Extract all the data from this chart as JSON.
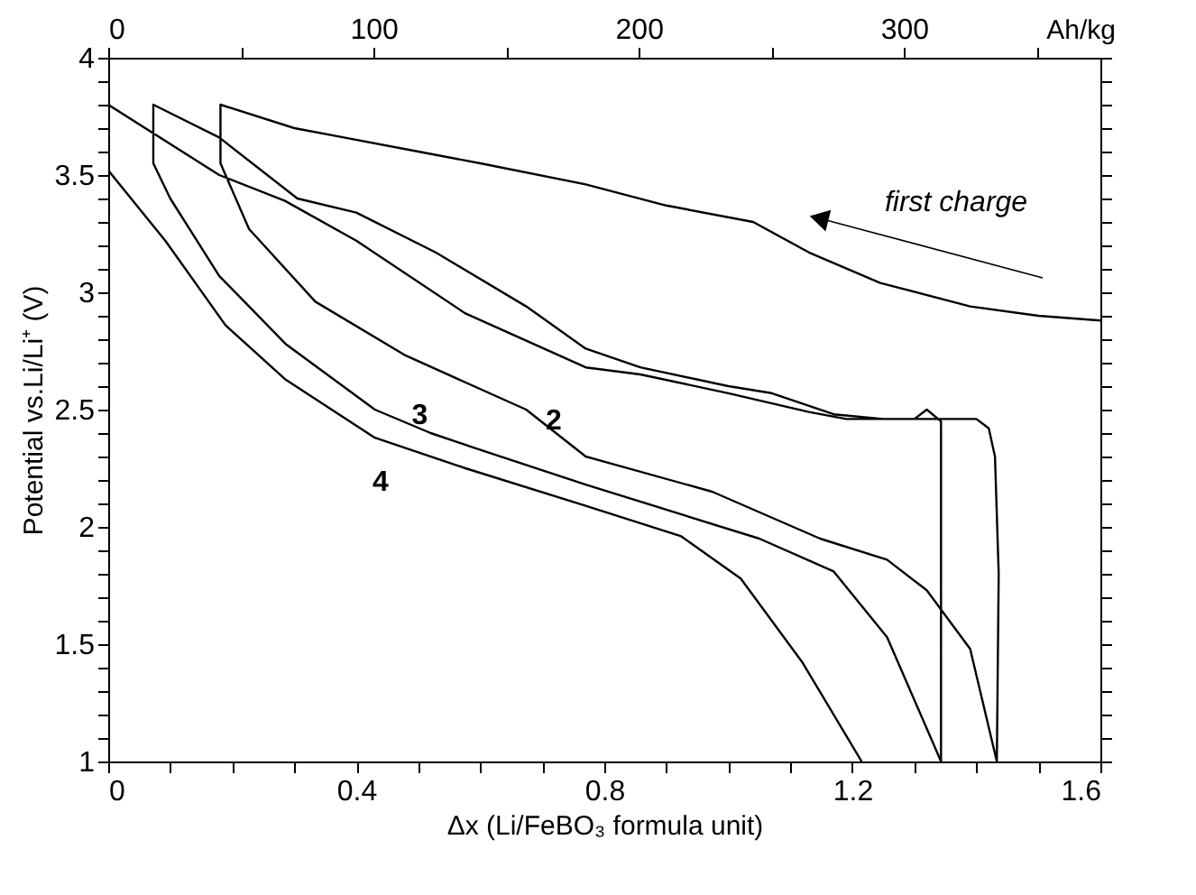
{
  "chart_data": {
    "type": "line",
    "xlabel": "Δx (Li/FeBO₃ formula unit)",
    "ylabel": "Potential vs.Li/Li⁺ (V)",
    "x2label": "Ah/kg",
    "xlim": [
      0,
      1.6
    ],
    "xticks": [
      0,
      {
        "value": 0.1,
        "label": null
      },
      {
        "value": 0.2,
        "label": null
      },
      {
        "value": 0.3,
        "label": null
      },
      0.4,
      {
        "value": 0.5,
        "label": null
      },
      {
        "value": 0.6,
        "label": null
      },
      {
        "value": 0.7,
        "label": null
      },
      0.8,
      {
        "value": 0.9,
        "label": null
      },
      {
        "value": 1.0,
        "label": null
      },
      {
        "value": 1.1,
        "label": null
      },
      1.2,
      {
        "value": 1.3,
        "label": null
      },
      {
        "value": 1.4,
        "label": null
      },
      {
        "value": 1.5,
        "label": null
      },
      1.6
    ],
    "ylim": [
      1,
      4
    ],
    "yticks": [
      1,
      {
        "value": 1.1,
        "label": null
      },
      {
        "value": 1.2,
        "label": null
      },
      {
        "value": 1.3,
        "label": null
      },
      {
        "value": 1.4,
        "label": null
      },
      1.5,
      {
        "value": 1.6,
        "label": null
      },
      {
        "value": 1.7,
        "label": null
      },
      {
        "value": 1.8,
        "label": null
      },
      {
        "value": 1.9,
        "label": null
      },
      2,
      {
        "value": 2.1,
        "label": null
      },
      {
        "value": 2.2,
        "label": null
      },
      {
        "value": 2.3,
        "label": null
      },
      {
        "value": 2.4,
        "label": null
      },
      2.5,
      {
        "value": 2.6,
        "label": null
      },
      {
        "value": 2.7,
        "label": null
      },
      {
        "value": 2.8,
        "label": null
      },
      {
        "value": 2.9,
        "label": null
      },
      3,
      {
        "value": 3.1,
        "label": null
      },
      {
        "value": 3.2,
        "label": null
      },
      {
        "value": 3.3,
        "label": null
      },
      {
        "value": 3.4,
        "label": null
      },
      3.5,
      {
        "value": 3.6,
        "label": null
      },
      {
        "value": 3.7,
        "label": null
      },
      {
        "value": 3.8,
        "label": null
      },
      {
        "value": 3.9,
        "label": null
      },
      4
    ],
    "x2lim": [
      0,
      374
    ],
    "x2ticks": [
      0,
      {
        "value": 50,
        "label": null
      },
      100,
      {
        "value": 150,
        "label": null
      },
      200,
      {
        "value": 250,
        "label": null
      },
      300,
      {
        "value": 350,
        "label": null
      }
    ],
    "grid": false,
    "series": [
      {
        "color": "#000000",
        "x": [
          1.6,
          1.5,
          1.39,
          1.245,
          1.13,
          1.04,
          0.9,
          0.77,
          0.6,
          0.5,
          0.38,
          0.3,
          0.181,
          0.181,
          0.227,
          0.334,
          0.48,
          0.674,
          0.77,
          0.974,
          1.148,
          1.256,
          1.32,
          1.39,
          1.433,
          1.436,
          1.43,
          1.42,
          1.4,
          1.25,
          1.17,
          1.07,
          1.0,
          0.858,
          0.77,
          0.674,
          0.528,
          0.4,
          0.305,
          0.179,
          0.0727,
          0.0727,
          0.1,
          0.179,
          0.286,
          0.43,
          0.52,
          0.587,
          0.77,
          1.05,
          1.17,
          1.256,
          1.343,
          1.343,
          1.32,
          1.3,
          1.19,
          1.13,
          1.0,
          0.858,
          0.77,
          0.576,
          0.4,
          0.285,
          0.179,
          0.0,
          0.0,
          0.092,
          0.189,
          0.285,
          0.43,
          0.576,
          0.77,
          0.924,
          1.02,
          1.12,
          1.215
        ],
        "values": [
          2.88,
          2.9,
          2.94,
          3.04,
          3.17,
          3.3,
          3.37,
          3.46,
          3.55,
          3.6,
          3.66,
          3.7,
          3.8,
          3.55,
          3.27,
          2.96,
          2.73,
          2.5,
          2.3,
          2.15,
          1.95,
          1.86,
          1.73,
          1.48,
          1.0,
          1.8,
          2.3,
          2.42,
          2.46,
          2.46,
          2.48,
          2.57,
          2.6,
          2.68,
          2.76,
          2.94,
          3.17,
          3.34,
          3.4,
          3.66,
          3.8,
          3.55,
          3.4,
          3.07,
          2.78,
          2.5,
          2.4,
          2.34,
          2.18,
          1.95,
          1.81,
          1.53,
          1.0,
          2.45,
          2.5,
          2.46,
          2.46,
          2.49,
          2.57,
          2.65,
          2.68,
          2.91,
          3.22,
          3.39,
          3.5,
          3.8,
          3.52,
          3.22,
          2.86,
          2.63,
          2.38,
          2.25,
          2.09,
          1.96,
          1.78,
          1.42,
          1.0
        ]
      }
    ],
    "annotations": [
      "first charge",
      "2",
      {
        "text": "3",
        "x": 0.52,
        "y": 2.4
      },
      "4"
    ]
  }
}
